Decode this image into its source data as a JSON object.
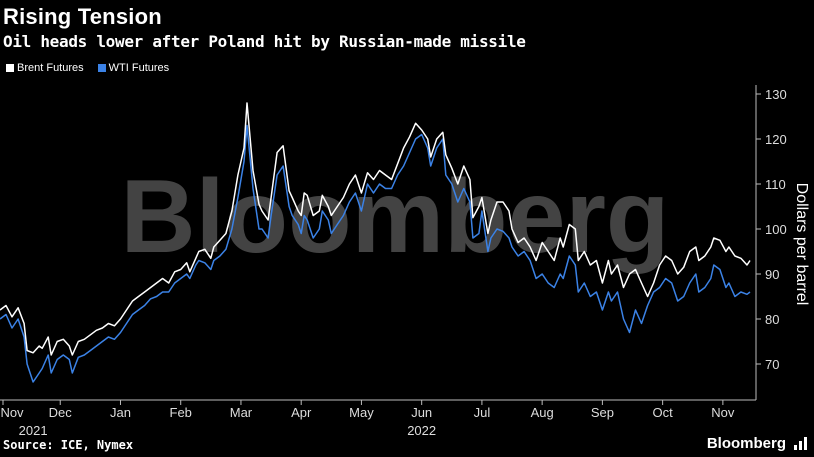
{
  "header": {
    "title": "Rising Tension",
    "subtitle": "Oil heads lower after Poland hit by Russian-made missile"
  },
  "footer": {
    "source": "Source: ICE, Nymex",
    "brand": "Bloomberg"
  },
  "watermark": "Bloomberg",
  "colors": {
    "brent": "#ffffff",
    "wti": "#3b82e6",
    "background": "#000000",
    "axis": "#bbbbbb"
  },
  "chart_data": {
    "type": "line",
    "ylabel": "Dollars per barrel",
    "ylim": [
      62,
      132
    ],
    "yticks": [
      70,
      80,
      90,
      100,
      110,
      120,
      130
    ],
    "y_axis_side": "right",
    "xlim": [
      0,
      12.55
    ],
    "xticks": [
      {
        "pos": 0.05,
        "label": "Nov"
      },
      {
        "pos": 1.0,
        "label": "Dec"
      },
      {
        "pos": 2.0,
        "label": "Jan"
      },
      {
        "pos": 3.0,
        "label": "Feb"
      },
      {
        "pos": 4.0,
        "label": "Mar"
      },
      {
        "pos": 5.0,
        "label": "Apr"
      },
      {
        "pos": 6.0,
        "label": "May"
      },
      {
        "pos": 7.0,
        "label": "Jun"
      },
      {
        "pos": 8.0,
        "label": "Jul"
      },
      {
        "pos": 9.0,
        "label": "Aug"
      },
      {
        "pos": 10.0,
        "label": "Sep"
      },
      {
        "pos": 11.0,
        "label": "Oct"
      },
      {
        "pos": 12.0,
        "label": "Nov"
      }
    ],
    "year_labels": [
      {
        "pos": 0.55,
        "label": "2021"
      },
      {
        "pos": 7.0,
        "label": "2022"
      }
    ],
    "legend_position": "top-left",
    "grid": false,
    "x_unit": "months since Nov 1, 2021",
    "series": [
      {
        "name": "Brent Futures",
        "color": "#ffffff",
        "points": [
          [
            0.0,
            82
          ],
          [
            0.1,
            83
          ],
          [
            0.2,
            80.5
          ],
          [
            0.3,
            82.5
          ],
          [
            0.4,
            79
          ],
          [
            0.45,
            73
          ],
          [
            0.55,
            72.5
          ],
          [
            0.65,
            74
          ],
          [
            0.7,
            73.5
          ],
          [
            0.8,
            76
          ],
          [
            0.85,
            72
          ],
          [
            0.95,
            75
          ],
          [
            1.05,
            75.5
          ],
          [
            1.15,
            74
          ],
          [
            1.2,
            72
          ],
          [
            1.3,
            75
          ],
          [
            1.4,
            75.5
          ],
          [
            1.5,
            76.5
          ],
          [
            1.6,
            77.5
          ],
          [
            1.7,
            78
          ],
          [
            1.8,
            79
          ],
          [
            1.9,
            78.5
          ],
          [
            2.0,
            80
          ],
          [
            2.1,
            82
          ],
          [
            2.2,
            84
          ],
          [
            2.3,
            85
          ],
          [
            2.4,
            86
          ],
          [
            2.5,
            87
          ],
          [
            2.6,
            88
          ],
          [
            2.7,
            89
          ],
          [
            2.8,
            88
          ],
          [
            2.9,
            90.5
          ],
          [
            3.0,
            91
          ],
          [
            3.1,
            92.5
          ],
          [
            3.15,
            90.5
          ],
          [
            3.25,
            93.5
          ],
          [
            3.3,
            95
          ],
          [
            3.4,
            95.5
          ],
          [
            3.5,
            93.5
          ],
          [
            3.55,
            96
          ],
          [
            3.65,
            97.5
          ],
          [
            3.75,
            99
          ],
          [
            3.85,
            104
          ],
          [
            3.95,
            112
          ],
          [
            4.05,
            118
          ],
          [
            4.1,
            128
          ],
          [
            4.2,
            113
          ],
          [
            4.3,
            105.5
          ],
          [
            4.35,
            104
          ],
          [
            4.45,
            102
          ],
          [
            4.5,
            107
          ],
          [
            4.6,
            117
          ],
          [
            4.7,
            118.5
          ],
          [
            4.8,
            108.5
          ],
          [
            4.85,
            107
          ],
          [
            4.95,
            104
          ],
          [
            5.0,
            103
          ],
          [
            5.05,
            108
          ],
          [
            5.1,
            107.5
          ],
          [
            5.2,
            103
          ],
          [
            5.3,
            104
          ],
          [
            5.35,
            107.5
          ],
          [
            5.45,
            105
          ],
          [
            5.5,
            103
          ],
          [
            5.6,
            105
          ],
          [
            5.7,
            107
          ],
          [
            5.8,
            110
          ],
          [
            5.9,
            112
          ],
          [
            6.0,
            108
          ],
          [
            6.1,
            112.5
          ],
          [
            6.2,
            111
          ],
          [
            6.3,
            113
          ],
          [
            6.4,
            112
          ],
          [
            6.5,
            111
          ],
          [
            6.6,
            114.5
          ],
          [
            6.7,
            118
          ],
          [
            6.8,
            120.5
          ],
          [
            6.9,
            123.5
          ],
          [
            7.0,
            122
          ],
          [
            7.1,
            120
          ],
          [
            7.15,
            116
          ],
          [
            7.25,
            120
          ],
          [
            7.35,
            121.5
          ],
          [
            7.4,
            116.5
          ],
          [
            7.5,
            113.5
          ],
          [
            7.6,
            110
          ],
          [
            7.7,
            114
          ],
          [
            7.8,
            111
          ],
          [
            7.85,
            102.5
          ],
          [
            7.95,
            105
          ],
          [
            8.0,
            107
          ],
          [
            8.1,
            99
          ],
          [
            8.15,
            102
          ],
          [
            8.25,
            106
          ],
          [
            8.35,
            106
          ],
          [
            8.45,
            104
          ],
          [
            8.5,
            100
          ],
          [
            8.6,
            97
          ],
          [
            8.7,
            98
          ],
          [
            8.8,
            96
          ],
          [
            8.9,
            93
          ],
          [
            9.0,
            97
          ],
          [
            9.1,
            95
          ],
          [
            9.2,
            93
          ],
          [
            9.3,
            98
          ],
          [
            9.35,
            96
          ],
          [
            9.45,
            101
          ],
          [
            9.55,
            100
          ],
          [
            9.6,
            93
          ],
          [
            9.7,
            95
          ],
          [
            9.8,
            92
          ],
          [
            9.9,
            93
          ],
          [
            10.0,
            88
          ],
          [
            10.1,
            93
          ],
          [
            10.15,
            90
          ],
          [
            10.25,
            92
          ],
          [
            10.35,
            87
          ],
          [
            10.45,
            90
          ],
          [
            10.55,
            91
          ],
          [
            10.65,
            88
          ],
          [
            10.75,
            85
          ],
          [
            10.85,
            88
          ],
          [
            10.95,
            92
          ],
          [
            11.05,
            94
          ],
          [
            11.15,
            93
          ],
          [
            11.25,
            90
          ],
          [
            11.35,
            91.5
          ],
          [
            11.45,
            95
          ],
          [
            11.55,
            96
          ],
          [
            11.6,
            93
          ],
          [
            11.7,
            94
          ],
          [
            11.8,
            96
          ],
          [
            11.85,
            98
          ],
          [
            11.95,
            97.5
          ],
          [
            12.05,
            95
          ],
          [
            12.1,
            96
          ],
          [
            12.2,
            94
          ],
          [
            12.3,
            93.5
          ],
          [
            12.4,
            92
          ],
          [
            12.45,
            93
          ]
        ]
      },
      {
        "name": "WTI Futures",
        "color": "#3b82e6",
        "points": [
          [
            0.0,
            80
          ],
          [
            0.1,
            81
          ],
          [
            0.2,
            78
          ],
          [
            0.3,
            80
          ],
          [
            0.4,
            76
          ],
          [
            0.45,
            70
          ],
          [
            0.55,
            66
          ],
          [
            0.65,
            68
          ],
          [
            0.7,
            69
          ],
          [
            0.8,
            72
          ],
          [
            0.85,
            68
          ],
          [
            0.95,
            71
          ],
          [
            1.05,
            72
          ],
          [
            1.15,
            71
          ],
          [
            1.2,
            68
          ],
          [
            1.3,
            71.5
          ],
          [
            1.4,
            72
          ],
          [
            1.5,
            73
          ],
          [
            1.6,
            74
          ],
          [
            1.7,
            75
          ],
          [
            1.8,
            76
          ],
          [
            1.9,
            75.5
          ],
          [
            2.0,
            77
          ],
          [
            2.1,
            79
          ],
          [
            2.2,
            81
          ],
          [
            2.3,
            82
          ],
          [
            2.4,
            83
          ],
          [
            2.5,
            84.5
          ],
          [
            2.6,
            85
          ],
          [
            2.7,
            86
          ],
          [
            2.8,
            86
          ],
          [
            2.9,
            88
          ],
          [
            3.0,
            89
          ],
          [
            3.1,
            90
          ],
          [
            3.15,
            89
          ],
          [
            3.25,
            92
          ],
          [
            3.3,
            93
          ],
          [
            3.4,
            92.5
          ],
          [
            3.5,
            91
          ],
          [
            3.55,
            93
          ],
          [
            3.65,
            94
          ],
          [
            3.75,
            95.5
          ],
          [
            3.85,
            100
          ],
          [
            3.95,
            107
          ],
          [
            4.05,
            115
          ],
          [
            4.1,
            123
          ],
          [
            4.2,
            109
          ],
          [
            4.3,
            100
          ],
          [
            4.35,
            100
          ],
          [
            4.45,
            98
          ],
          [
            4.5,
            103
          ],
          [
            4.6,
            112
          ],
          [
            4.7,
            114
          ],
          [
            4.8,
            105
          ],
          [
            4.85,
            103
          ],
          [
            4.95,
            101
          ],
          [
            5.0,
            99
          ],
          [
            5.05,
            103
          ],
          [
            5.1,
            102
          ],
          [
            5.2,
            98
          ],
          [
            5.3,
            100
          ],
          [
            5.35,
            104
          ],
          [
            5.45,
            102
          ],
          [
            5.5,
            99
          ],
          [
            5.6,
            101
          ],
          [
            5.7,
            103
          ],
          [
            5.8,
            106
          ],
          [
            5.9,
            108
          ],
          [
            6.0,
            104
          ],
          [
            6.1,
            110
          ],
          [
            6.2,
            108
          ],
          [
            6.3,
            110
          ],
          [
            6.4,
            109
          ],
          [
            6.5,
            109
          ],
          [
            6.6,
            112
          ],
          [
            6.7,
            114
          ],
          [
            6.8,
            117
          ],
          [
            6.9,
            120
          ],
          [
            7.0,
            121
          ],
          [
            7.1,
            118
          ],
          [
            7.15,
            114
          ],
          [
            7.25,
            118
          ],
          [
            7.35,
            120
          ],
          [
            7.4,
            112
          ],
          [
            7.5,
            110
          ],
          [
            7.6,
            106
          ],
          [
            7.7,
            109
          ],
          [
            7.8,
            106
          ],
          [
            7.85,
            98
          ],
          [
            7.95,
            99
          ],
          [
            8.0,
            104
          ],
          [
            8.1,
            95
          ],
          [
            8.15,
            98
          ],
          [
            8.25,
            100
          ],
          [
            8.35,
            99.5
          ],
          [
            8.45,
            98
          ],
          [
            8.5,
            96
          ],
          [
            8.6,
            94
          ],
          [
            8.7,
            95
          ],
          [
            8.8,
            93
          ],
          [
            8.9,
            89
          ],
          [
            9.0,
            90
          ],
          [
            9.1,
            88
          ],
          [
            9.2,
            87
          ],
          [
            9.3,
            90
          ],
          [
            9.35,
            89
          ],
          [
            9.45,
            94
          ],
          [
            9.55,
            92
          ],
          [
            9.6,
            86
          ],
          [
            9.7,
            88
          ],
          [
            9.8,
            85
          ],
          [
            9.9,
            86
          ],
          [
            10.0,
            82
          ],
          [
            10.1,
            86
          ],
          [
            10.15,
            84
          ],
          [
            10.25,
            86
          ],
          [
            10.35,
            80
          ],
          [
            10.45,
            77
          ],
          [
            10.55,
            82
          ],
          [
            10.65,
            79
          ],
          [
            10.75,
            83
          ],
          [
            10.85,
            86
          ],
          [
            10.95,
            87
          ],
          [
            11.05,
            89
          ],
          [
            11.15,
            88
          ],
          [
            11.25,
            84
          ],
          [
            11.35,
            85
          ],
          [
            11.45,
            88
          ],
          [
            11.55,
            90
          ],
          [
            11.6,
            86
          ],
          [
            11.7,
            87
          ],
          [
            11.8,
            89
          ],
          [
            11.85,
            92
          ],
          [
            11.95,
            91
          ],
          [
            12.05,
            87
          ],
          [
            12.1,
            88
          ],
          [
            12.2,
            85
          ],
          [
            12.3,
            86
          ],
          [
            12.4,
            85.5
          ],
          [
            12.45,
            86
          ]
        ]
      }
    ]
  }
}
